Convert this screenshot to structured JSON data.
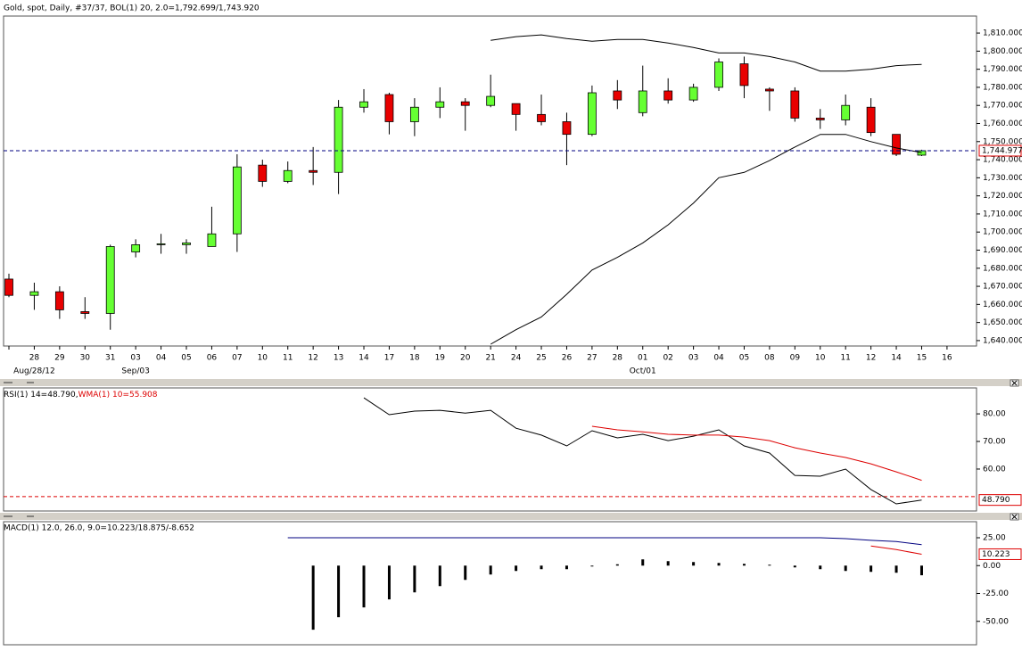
{
  "chart_data": [
    {
      "type": "candlestick",
      "title": "Gold, spot, Daily, #37/37, BOL(1) 20, 2.0=1,792.699/1,743.920",
      "categories": [
        null,
        "28",
        "29",
        "30",
        "31",
        "03",
        "04",
        "05",
        "06",
        "07",
        "10",
        "11",
        "12",
        "13",
        "14",
        "17",
        "18",
        "19",
        "20",
        "21",
        "24",
        "25",
        "26",
        "27",
        "28",
        "01",
        "02",
        "03",
        "04",
        "05",
        "08",
        "09",
        "10",
        "11",
        "12",
        "14",
        "15",
        "16"
      ],
      "months": [
        null,
        "Aug/28/12",
        null,
        null,
        null,
        "Sep/03",
        null,
        null,
        null,
        null,
        null,
        null,
        null,
        null,
        null,
        null,
        null,
        null,
        null,
        null,
        null,
        null,
        null,
        null,
        null,
        "Oct/01",
        null,
        null,
        null,
        null,
        null,
        null,
        null,
        null,
        null,
        null,
        null,
        null
      ],
      "open": [
        1674,
        1665,
        1667,
        1656,
        1655,
        1689,
        1693,
        1693,
        1692,
        1699,
        1737,
        1728,
        1734,
        1733,
        1769,
        1776,
        1761,
        1769,
        1772,
        1770,
        1771,
        1765,
        1761,
        1754,
        1778,
        1766,
        1778,
        1773,
        1780,
        1793,
        1779,
        1778,
        1763,
        1762,
        1769,
        1754,
        1742.5,
        null
      ],
      "high": [
        1677,
        1672,
        1670,
        1664,
        1693,
        1696,
        1699,
        1696,
        1714,
        1743,
        1740,
        1739,
        1747,
        1773,
        1779,
        1777,
        1774,
        1780,
        1774,
        1787,
        1771,
        1776,
        1766,
        1781,
        1784,
        1792,
        1785,
        1782,
        1796,
        1797,
        1780,
        1780,
        1768,
        1776,
        1774,
        1754,
        1745.5,
        null
      ],
      "low": [
        1664,
        1657,
        1652,
        1652,
        1646,
        1686,
        1688,
        1688,
        1692,
        1689,
        1725,
        1727,
        1726,
        1721,
        1766,
        1754,
        1753,
        1763,
        1756,
        1769,
        1756,
        1759,
        1737,
        1753,
        1768,
        1764,
        1771,
        1772,
        1778,
        1774,
        1767,
        1761,
        1757,
        1759,
        1753,
        1742,
        1742,
        null
      ],
      "close": [
        1665,
        1667,
        1657,
        1655,
        1692,
        1693,
        1693.5,
        1694,
        1699,
        1736,
        1728,
        1734,
        1733,
        1769,
        1772,
        1761,
        1769,
        1772,
        1770,
        1775,
        1765,
        1761,
        1754,
        1777,
        1773,
        1778,
        1773,
        1780,
        1794,
        1781,
        1778,
        1763,
        1762,
        1770,
        1755,
        1743,
        1744.977,
        null
      ],
      "up_color": "#66ff33",
      "down_color": "#e80000",
      "series": [
        {
          "color": "#000000",
          "values": [
            null,
            null,
            null,
            null,
            null,
            null,
            null,
            null,
            null,
            null,
            null,
            null,
            null,
            null,
            null,
            null,
            null,
            null,
            null,
            1806,
            1808,
            1809,
            1807,
            1805.5,
            1806.5,
            1806.5,
            1804.5,
            1802,
            1799,
            1799,
            1797,
            1794,
            1789,
            1789,
            1790,
            1792,
            1792.699,
            null
          ]
        },
        {
          "color": "#000000",
          "values": [
            null,
            null,
            null,
            null,
            null,
            null,
            null,
            null,
            null,
            null,
            null,
            null,
            null,
            null,
            null,
            null,
            null,
            null,
            null,
            1638,
            1646,
            1653,
            1665.6,
            1679,
            1686,
            1694,
            1704,
            1716,
            1730,
            1733,
            1739.5,
            1747,
            1754,
            1754,
            1750,
            1746.5,
            1743.92,
            null
          ]
        }
      ],
      "ylim": [
        1637,
        1819.4
      ],
      "yticks": [
        {
          "value": 1640,
          "label": "1,640.000"
        },
        {
          "value": 1650,
          "label": "1,650.000"
        },
        {
          "value": 1660,
          "label": "1,660.000"
        },
        {
          "value": 1670,
          "label": "1,670.000"
        },
        {
          "value": 1680,
          "label": "1,680.000"
        },
        {
          "value": 1690,
          "label": "1,690.000"
        },
        {
          "value": 1700,
          "label": "1,700.000"
        },
        {
          "value": 1710,
          "label": "1,710.000"
        },
        {
          "value": 1720,
          "label": "1,720.000"
        },
        {
          "value": 1730,
          "label": "1,730.000"
        },
        {
          "value": 1740,
          "label": "1,740.000"
        },
        {
          "value": 1750,
          "label": "1,750.000"
        },
        {
          "value": 1760,
          "label": "1,760.000"
        },
        {
          "value": 1770,
          "label": "1,770.000"
        },
        {
          "value": 1780,
          "label": "1,780.000"
        },
        {
          "value": 1790,
          "label": "1,790.000"
        },
        {
          "value": 1800,
          "label": "1,800.000"
        },
        {
          "value": 1810,
          "label": "1,810.000"
        }
      ],
      "last": {
        "value": 1744.977,
        "label": "1,744.977"
      },
      "last_color": "#000080",
      "last_text_color": "#000080"
    },
    {
      "type": "line",
      "series": [
        {
          "name": "RSI(1) 14=48.790,",
          "color": "#000000",
          "values": [
            null,
            null,
            null,
            null,
            null,
            null,
            null,
            null,
            null,
            null,
            null,
            null,
            null,
            null,
            85.8,
            79.7,
            81,
            81.3,
            80.3,
            81.3,
            74.8,
            72.3,
            68.4,
            73.9,
            71.3,
            72.6,
            70.3,
            71.9,
            74.2,
            68.4,
            65.8,
            57.7,
            57.4,
            60,
            52.6,
            47.4,
            48.79,
            null
          ]
        },
        {
          "name": "WMA(1) 10=55.908",
          "color": "#dd0000",
          "values": [
            null,
            null,
            null,
            null,
            null,
            null,
            null,
            null,
            null,
            null,
            null,
            null,
            null,
            null,
            null,
            null,
            null,
            null,
            null,
            null,
            null,
            null,
            null,
            75.5,
            74.2,
            73.5,
            72.6,
            72.3,
            72.3,
            71.6,
            70.3,
            67.7,
            65.8,
            64.2,
            61.9,
            59,
            55.908,
            null
          ]
        }
      ],
      "ref_line": 50,
      "ref_color": "#dd0000",
      "ylim": [
        44.8,
        89.4
      ],
      "yticks": [
        {
          "value": 60,
          "label": "60.00"
        },
        {
          "value": 70,
          "label": "70.00"
        },
        {
          "value": 80,
          "label": "80.00"
        }
      ],
      "last": {
        "value": 48.79,
        "label": "48.790"
      },
      "last_text_color": "#000080"
    },
    {
      "type": "macd",
      "title": "MACD(1) 12.0, 26.0, 9.0=10.223/18.875/-8.652",
      "title_color": "#dd0000",
      "values": [
        null,
        null,
        null,
        null,
        null,
        null,
        null,
        null,
        null,
        null,
        null,
        null,
        -57.5,
        -46.3,
        -37.5,
        -30.3,
        -24,
        -18.4,
        -12.8,
        -8,
        -4.8,
        -3.2,
        -3.2,
        -0.8,
        1.2,
        5.6,
        4,
        3.2,
        2.4,
        1.6,
        0.8,
        -1.6,
        -3.2,
        -4.8,
        -5.6,
        -6.4,
        -8.652,
        null
      ],
      "color": "#000000",
      "series": [
        {
          "color": "#000080",
          "values": [
            null,
            null,
            null,
            null,
            null,
            null,
            null,
            null,
            null,
            null,
            null,
            25,
            25,
            25,
            25,
            25,
            25,
            25,
            25,
            25,
            25,
            25,
            25,
            25,
            25,
            25,
            25,
            25,
            25,
            25,
            25,
            25,
            25,
            24.2,
            22.7,
            21.6,
            18.875,
            null
          ]
        },
        {
          "color": "#dd0000",
          "values": [
            null,
            null,
            null,
            null,
            null,
            null,
            null,
            null,
            null,
            null,
            null,
            null,
            null,
            null,
            null,
            null,
            null,
            null,
            null,
            null,
            null,
            null,
            null,
            null,
            null,
            null,
            null,
            null,
            null,
            null,
            null,
            null,
            null,
            null,
            17.6,
            14.4,
            10.223,
            null
          ]
        }
      ],
      "ylim": [
        -71,
        39.4
      ],
      "yticks": [
        {
          "value": -50,
          "label": "-50.00"
        },
        {
          "value": -25,
          "label": "-25.00"
        },
        {
          "value": 0,
          "label": "0.00"
        },
        {
          "value": 25,
          "label": "25.00"
        }
      ],
      "last": {
        "value": 10.223,
        "label": "10.223"
      },
      "last_text_color": "#dd0000"
    }
  ]
}
